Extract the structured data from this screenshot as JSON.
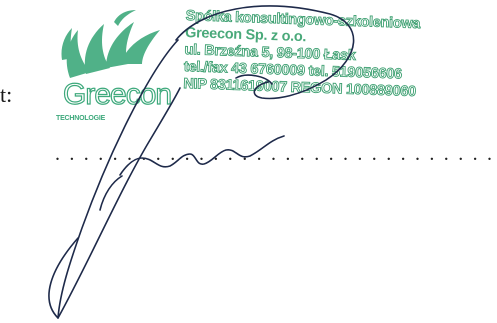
{
  "form": {
    "field_label": "t:",
    "dotted_line": ". . . . . . . . . . . . . . . . . . . . . . . . . . . . . . . ."
  },
  "stamp": {
    "color": "#4aa97a",
    "logo": {
      "wordmark": "Greecon",
      "tagline": "TECHNOLOGIE"
    },
    "lines": [
      "Spółka konsultingowo-szkoleniowa",
      "Greecon Sp. z o.o.",
      "ul. Brzeźna 5, 98-100 Łask",
      "tel./fax 43 6760009 tel. 519056606",
      "NIP 8311619007 REGON 100889060"
    ]
  },
  "signature": {
    "ink_color": "#1e2a4a"
  }
}
